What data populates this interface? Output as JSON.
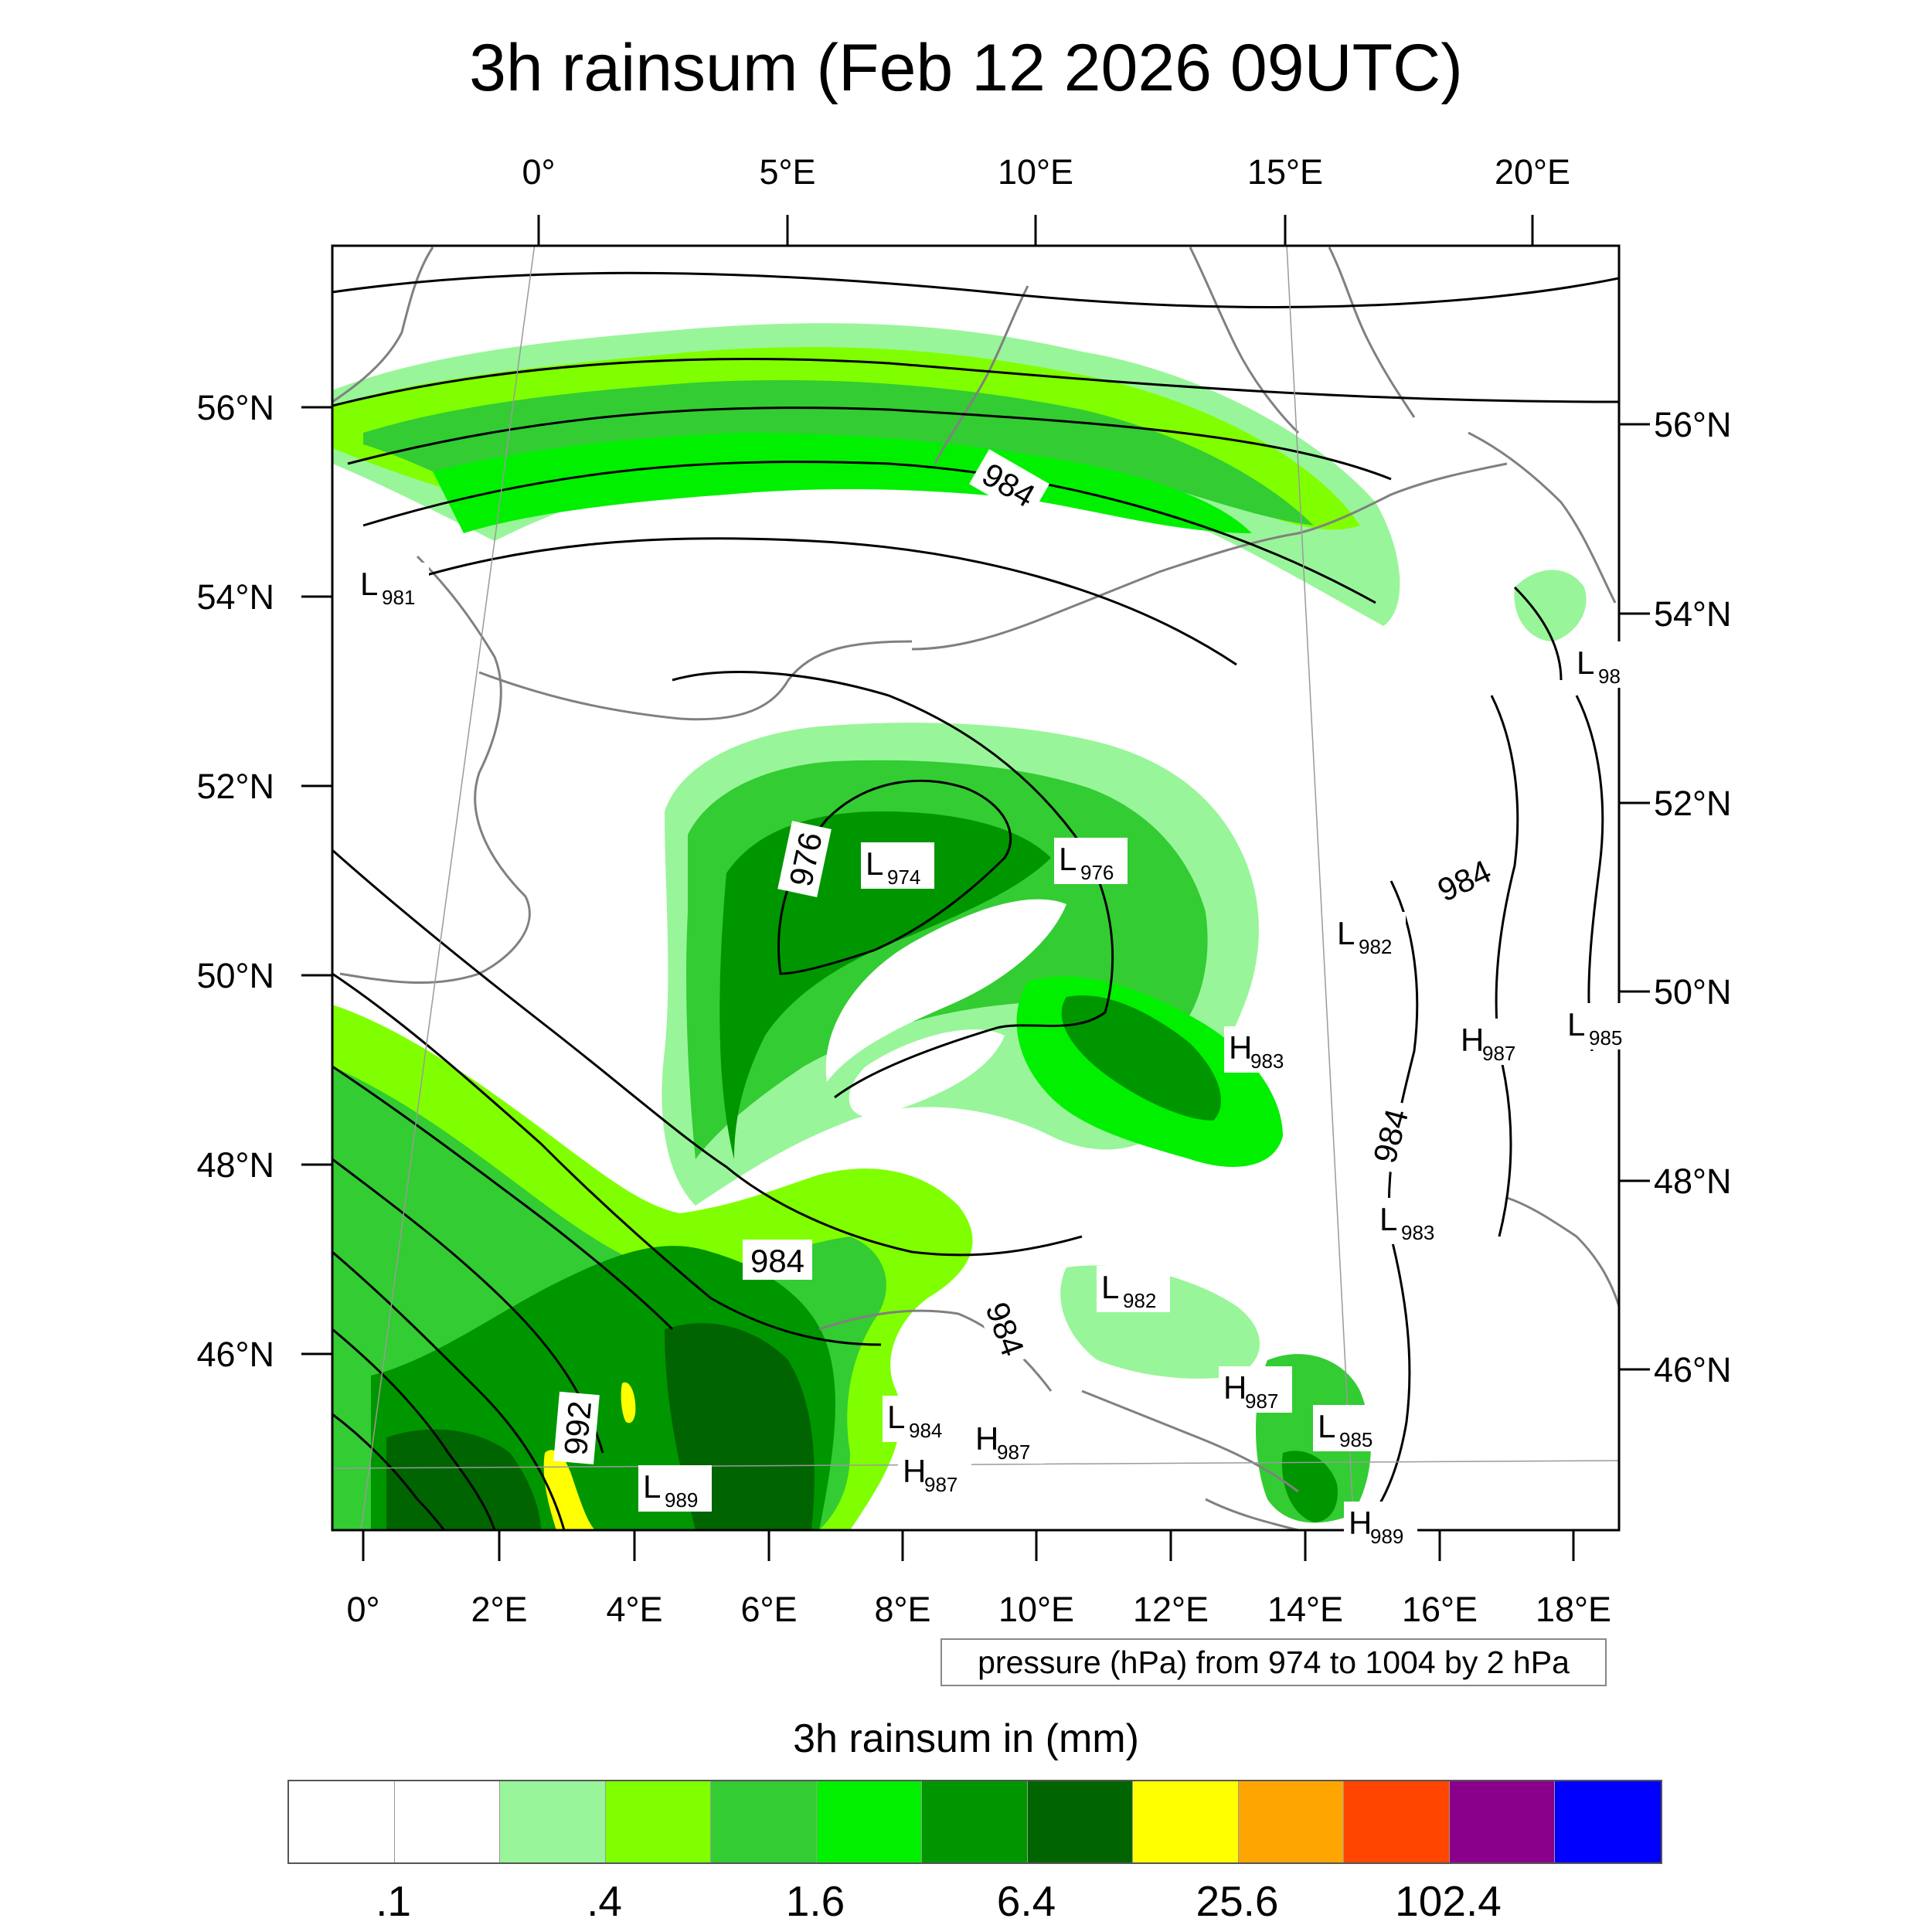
{
  "title": "3h rainsum (Feb 12 2026 09UTC)",
  "map": {
    "top_lon_labels": [
      "0°",
      "5°E",
      "10°E",
      "15°E",
      "20°E"
    ],
    "bottom_lon_labels": [
      "0°",
      "2°E",
      "4°E",
      "6°E",
      "8°E",
      "10°E",
      "12°E",
      "14°E",
      "16°E",
      "18°E"
    ],
    "lat_labels": [
      "56°N",
      "54°N",
      "52°N",
      "50°N",
      "48°N",
      "46°N"
    ],
    "contour_labels": [
      "984",
      "976",
      "984",
      "984",
      "984",
      "984",
      "992"
    ],
    "pressure_centres": [
      {
        "letter": "L",
        "value": "981"
      },
      {
        "letter": "L",
        "value": "98"
      },
      {
        "letter": "L",
        "value": "974"
      },
      {
        "letter": "L",
        "value": "976"
      },
      {
        "letter": "L",
        "value": "982"
      },
      {
        "letter": "H",
        "value": "983"
      },
      {
        "letter": "H",
        "value": "987"
      },
      {
        "letter": "L",
        "value": "985"
      },
      {
        "letter": "L",
        "value": "983"
      },
      {
        "letter": "L",
        "value": "982"
      },
      {
        "letter": "H",
        "value": "987"
      },
      {
        "letter": "L",
        "value": "985"
      },
      {
        "letter": "L",
        "value": "984"
      },
      {
        "letter": "H",
        "value": "987"
      },
      {
        "letter": "H",
        "value": "987"
      },
      {
        "letter": "L",
        "value": "989"
      },
      {
        "letter": "H",
        "value": "989"
      }
    ]
  },
  "pressure_note": "pressure (hPa) from 974 to 1004 by 2 hPa",
  "colorbar": {
    "title": "3h rainsum in (mm)",
    "colors": [
      "#ffffff",
      "#ffffff",
      "#99f599",
      "#80ff00",
      "#33cc33",
      "#00f000",
      "#009600",
      "#006400",
      "#ffff00",
      "#ffa500",
      "#ff4500",
      "#8b008b",
      "#0000ff"
    ],
    "labels": [
      ".1",
      ".4",
      "1.6",
      "6.4",
      "25.6",
      "102.4"
    ]
  },
  "legend_colors": {
    "coast": "#808080",
    "isobar": "#000000",
    "light_green": "#99f599",
    "lime": "#80ff00",
    "mid_green": "#33cc33",
    "bright_green": "#00f000",
    "dark_green": "#009600",
    "darkest_green": "#006400",
    "yellow": "#ffff00"
  }
}
